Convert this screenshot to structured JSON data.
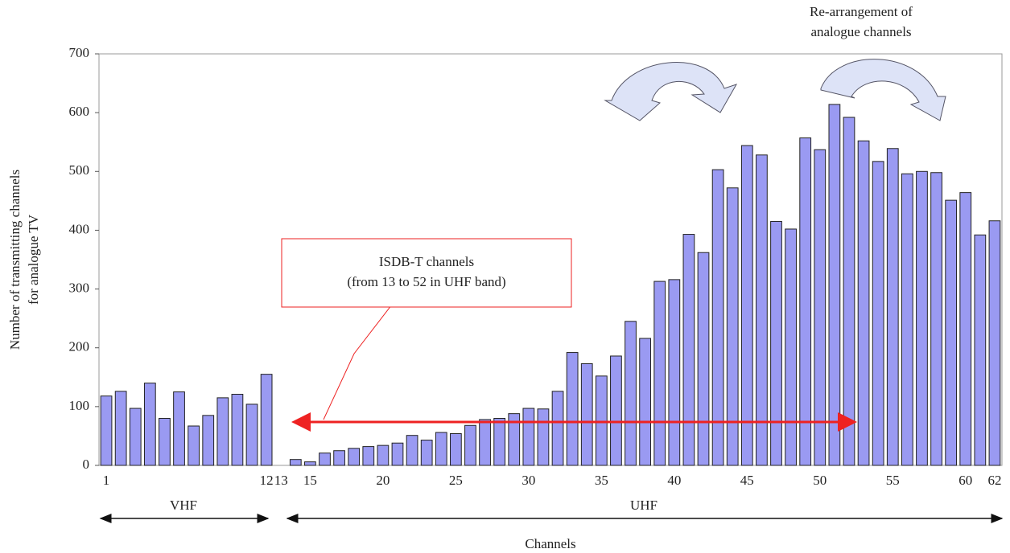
{
  "chart_data": {
    "type": "bar",
    "annotation_top": [
      "Re-arrangement of",
      "analogue channels"
    ],
    "y_label": [
      "Number of transmitting channels",
      "for analogue TV"
    ],
    "x_label": "Channels",
    "callout": [
      "ISDB-T channels",
      "(from 13 to 52 in UHF band)"
    ],
    "bands": [
      "VHF",
      "UHF"
    ],
    "categories": [
      "1",
      null,
      null,
      null,
      null,
      null,
      null,
      null,
      null,
      null,
      null,
      "12",
      "13",
      null,
      "15",
      null,
      null,
      null,
      null,
      "20",
      null,
      null,
      null,
      null,
      "25",
      null,
      null,
      null,
      null,
      "30",
      null,
      null,
      null,
      null,
      "35",
      null,
      null,
      null,
      null,
      "40",
      null,
      null,
      null,
      null,
      "45",
      null,
      null,
      null,
      null,
      "50",
      null,
      null,
      null,
      null,
      "55",
      null,
      null,
      null,
      null,
      "60",
      null,
      "62"
    ],
    "values": [
      118,
      126,
      97,
      140,
      80,
      125,
      67,
      85,
      115,
      121,
      104,
      155,
      0,
      10,
      6,
      21,
      25,
      29,
      32,
      34,
      38,
      51,
      43,
      56,
      54,
      68,
      78,
      80,
      88,
      97,
      96,
      126,
      192,
      173,
      152,
      186,
      245,
      216,
      313,
      316,
      393,
      362,
      503,
      472,
      544,
      528,
      415,
      402,
      557,
      537,
      614,
      592,
      552,
      517,
      539,
      496,
      500,
      498,
      451,
      464,
      392,
      416
    ],
    "color": "#9a9af2",
    "ylim": [
      0,
      700
    ],
    "yticks": [
      0,
      100,
      200,
      300,
      400,
      500,
      600,
      700
    ],
    "grid": false
  }
}
